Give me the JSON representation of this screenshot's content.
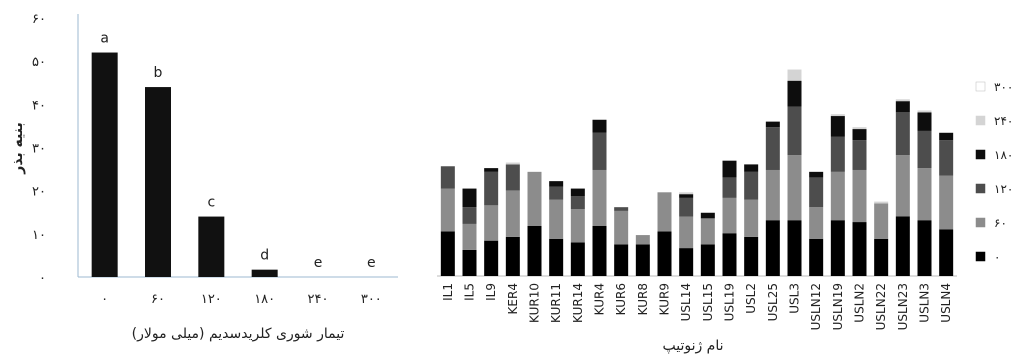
{
  "chart_data": [
    {
      "type": "bar",
      "xlabel": "تیمار شوری کلریدسدیم (میلی مولار)",
      "ylabel": "بنیه بذر",
      "ylim": [
        0,
        60
      ],
      "yticks": [
        "۰",
        "۱۰",
        "۲۰",
        "۳۰",
        "۴۰",
        "۵۰",
        "۶۰"
      ],
      "categories": [
        "۰",
        "۶۰",
        "۱۲۰",
        "۱۸۰",
        "۲۴۰",
        "۳۰۰"
      ],
      "values": [
        52,
        44,
        14,
        1.7,
        0,
        0
      ],
      "letters": [
        "a",
        "b",
        "c",
        "d",
        "e",
        "e"
      ],
      "bar_color": "#111111"
    },
    {
      "type": "bar",
      "stacked": true,
      "xlabel": "نام ژنوتیپ",
      "categories": [
        "IL1",
        "IL5",
        "IL9",
        "KER4",
        "KUR10",
        "KUR11",
        "KUR14",
        "KUR4",
        "KUR6",
        "KUR8",
        "KUR9",
        "USL14",
        "USL15",
        "USL19",
        "USL2",
        "USL25",
        "USL3",
        "USLN12",
        "USLN19",
        "USLN2",
        "USLN22",
        "USLN23",
        "USLN3",
        "USLN4"
      ],
      "legend_position": "right",
      "series": [
        {
          "name": "۰",
          "color": "#000000",
          "values": [
            12.0,
            7.0,
            9.5,
            10.5,
            13.5,
            10.0,
            9.0,
            13.5,
            8.5,
            8.5,
            12.0,
            7.5,
            8.5,
            11.5,
            10.5,
            15.0,
            15.0,
            10.0,
            15.0,
            14.5,
            10.0,
            16.0,
            15.0,
            12.5
          ]
        },
        {
          "name": "۶۰",
          "color": "#8c8c8c",
          "values": [
            11.5,
            7.0,
            9.5,
            12.5,
            14.5,
            10.5,
            9.0,
            15.0,
            9.0,
            2.5,
            10.5,
            8.5,
            7.0,
            9.5,
            10.0,
            13.5,
            17.5,
            8.5,
            13.0,
            14.0,
            9.5,
            16.5,
            14.0,
            14.5
          ]
        },
        {
          "name": "۱۲۰",
          "color": "#4d4d4d",
          "values": [
            6.0,
            4.5,
            9.0,
            7.0,
            0,
            3.5,
            3.5,
            10.0,
            1.0,
            0,
            0,
            5.0,
            0,
            5.5,
            7.5,
            11.5,
            13.0,
            8.0,
            9.5,
            8.0,
            0,
            11.5,
            10.0,
            9.5
          ]
        },
        {
          "name": "۱۸۰",
          "color": "#0d0d0d",
          "values": [
            0,
            5.0,
            1.0,
            0,
            0,
            1.5,
            2.0,
            3.5,
            0,
            0,
            0,
            1.0,
            1.5,
            4.5,
            2.0,
            1.5,
            7.0,
            1.5,
            5.5,
            3.0,
            0,
            3.0,
            5.0,
            2.0
          ]
        },
        {
          "name": "۲۴۰",
          "color": "#d4d4d4",
          "values": [
            0,
            0,
            0,
            0.5,
            0,
            0,
            0,
            0,
            0,
            0,
            0,
            0.5,
            0,
            0,
            0,
            0,
            3.0,
            0,
            0.5,
            0.5,
            0.5,
            0.5,
            0.5,
            0
          ]
        },
        {
          "name": "۳۰۰",
          "color": "#ffffff",
          "values": [
            0,
            0,
            0,
            0,
            0,
            0,
            0,
            0,
            0,
            0,
            0,
            0,
            0,
            0,
            0,
            0,
            0,
            0,
            0,
            0,
            0,
            0,
            0,
            0
          ]
        }
      ]
    }
  ]
}
